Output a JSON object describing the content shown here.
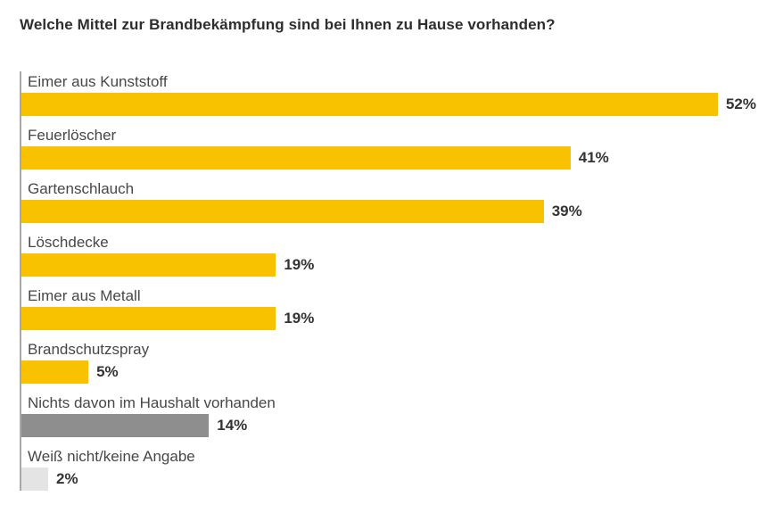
{
  "colors": {
    "background": "#ffffff",
    "title": "#2e2e2e",
    "category_label": "#474747",
    "value_label": "#333333",
    "axis_line": "#a9a9a9",
    "bar_primary": "#f9c200",
    "bar_negative": "#8e8e8e",
    "bar_no_answer": "#e4e4e4"
  },
  "chart_data": {
    "type": "bar",
    "orientation": "horizontal",
    "title": "Welche Mittel zur Brandbekämpfung sind bei Ihnen zu Hause vorhanden?",
    "xlabel": "",
    "ylabel": "",
    "unit": "%",
    "xlim": [
      0,
      55
    ],
    "grid": false,
    "legend": false,
    "categories": [
      "Eimer aus Kunststoff",
      "Feuerlöscher",
      "Gartenschlauch",
      "Löschdecke",
      "Eimer aus Metall",
      "Brandschutzspray",
      "Nichts davon im Haushalt vorhanden",
      "Weiß nicht/keine Angabe"
    ],
    "values": [
      52,
      41,
      39,
      19,
      19,
      5,
      14,
      2
    ],
    "value_labels": [
      "52%",
      "41%",
      "39%",
      "19%",
      "19%",
      "5%",
      "14%",
      "2%"
    ],
    "bar_colors": [
      "#f9c200",
      "#f9c200",
      "#f9c200",
      "#f9c200",
      "#f9c200",
      "#f9c200",
      "#8e8e8e",
      "#e4e4e4"
    ]
  }
}
